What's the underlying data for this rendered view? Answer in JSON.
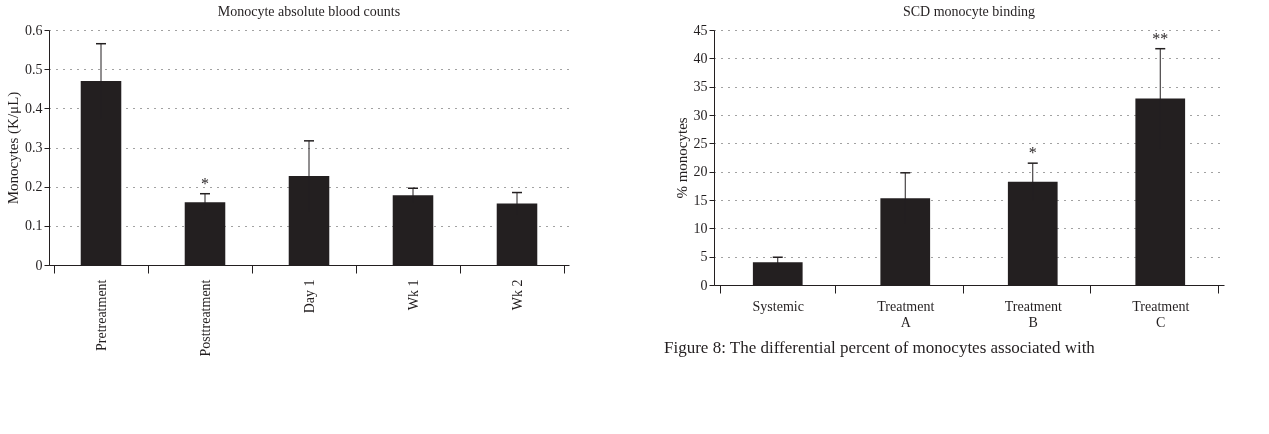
{
  "chart_data": [
    {
      "type": "bar",
      "title": "Monocyte absolute blood counts",
      "ylabel": "Monocytes (K/μL)",
      "categories": [
        "Pretreatment",
        "Posttreatment",
        "Day 1",
        "Wk 1",
        "Wk 2"
      ],
      "values": [
        0.47,
        0.16,
        0.227,
        0.178,
        0.157
      ],
      "errors": [
        0.095,
        0.022,
        0.09,
        0.018,
        0.028
      ],
      "color": "#231f20",
      "ylim": [
        0,
        0.6
      ],
      "yticks": [
        {
          "value": 0,
          "label": "0"
        },
        0.1,
        0.2,
        0.3,
        0.4,
        0.5,
        0.6
      ],
      "grid": "y",
      "annotations": [
        {
          "text": "*",
          "x": "Posttreatment",
          "y": 0.182
        }
      ]
    },
    {
      "type": "bar",
      "title": "SCD monocyte binding",
      "ylabel": "% monocytes",
      "categories": [
        "Systemic",
        "Treatment A",
        "Treatment B",
        "Treatment C"
      ],
      "values": [
        4.0,
        15.3,
        18.2,
        32.9
      ],
      "errors": [
        0.9,
        4.5,
        3.3,
        8.8
      ],
      "color": "#231f20",
      "ylim": [
        0,
        45
      ],
      "yticks": [
        0,
        5,
        10,
        15,
        20,
        25,
        30,
        35,
        40,
        45
      ],
      "grid": "y",
      "annotations": [
        {
          "text": "*",
          "x": "Treatment B",
          "y": 21.5
        },
        {
          "text": "**",
          "x": "Treatment C",
          "y": 41.7
        },
        "Figure 8: The differential percent of monocytes associated with"
      ]
    }
  ]
}
